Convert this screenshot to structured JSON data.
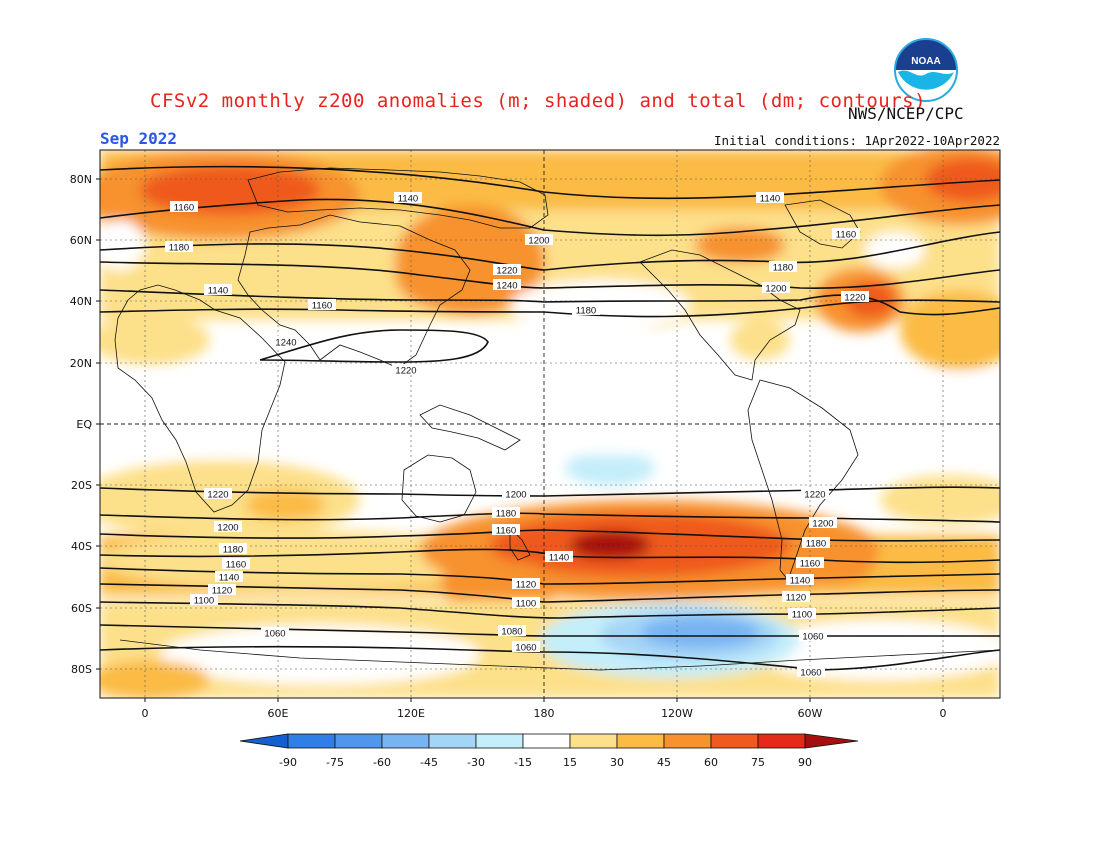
{
  "title": "CFSv2 monthly z200 anomalies (m; shaded) and total (dm; contours)",
  "agency": "NWS/NCEP/CPC",
  "month": "Sep 2022",
  "initial_conditions": "Initial conditions: 1Apr2022-10Apr2022",
  "logo_text": "NOAA",
  "lat_labels": [
    "80N",
    "60N",
    "40N",
    "20N",
    "EQ",
    "20S",
    "40S",
    "60S",
    "80S"
  ],
  "lon_labels": [
    "0",
    "60E",
    "120E",
    "180",
    "120W",
    "60W",
    "0"
  ],
  "colorbar": {
    "labels": [
      "-90",
      "-75",
      "-60",
      "-45",
      "-30",
      "-15",
      "15",
      "30",
      "45",
      "60",
      "75",
      "90"
    ],
    "colors": [
      "#1560d0",
      "#2f7fe6",
      "#4f96ec",
      "#78b4f2",
      "#a4d4f6",
      "#c4eefa",
      "#ffffff",
      "#fde08a",
      "#fbbb45",
      "#f7922f",
      "#ef5a1e",
      "#e42a18",
      "#a50f0f"
    ]
  },
  "contour_labels": [
    "1140",
    "1160",
    "1180",
    "1200",
    "1220",
    "1240",
    "1140",
    "1160",
    "1180",
    "1200",
    "1220",
    "1140",
    "1160",
    "1180",
    "1200",
    "1220",
    "1240",
    "1220",
    "1200",
    "1180",
    "1160",
    "1140",
    "1120",
    "1100",
    "1060",
    "1220",
    "1200",
    "1180",
    "1160",
    "1140",
    "1120",
    "1100",
    "1080",
    "1060",
    "1220",
    "1200",
    "1180",
    "1160",
    "1140",
    "1120",
    "1100",
    "1060",
    "1060"
  ]
}
